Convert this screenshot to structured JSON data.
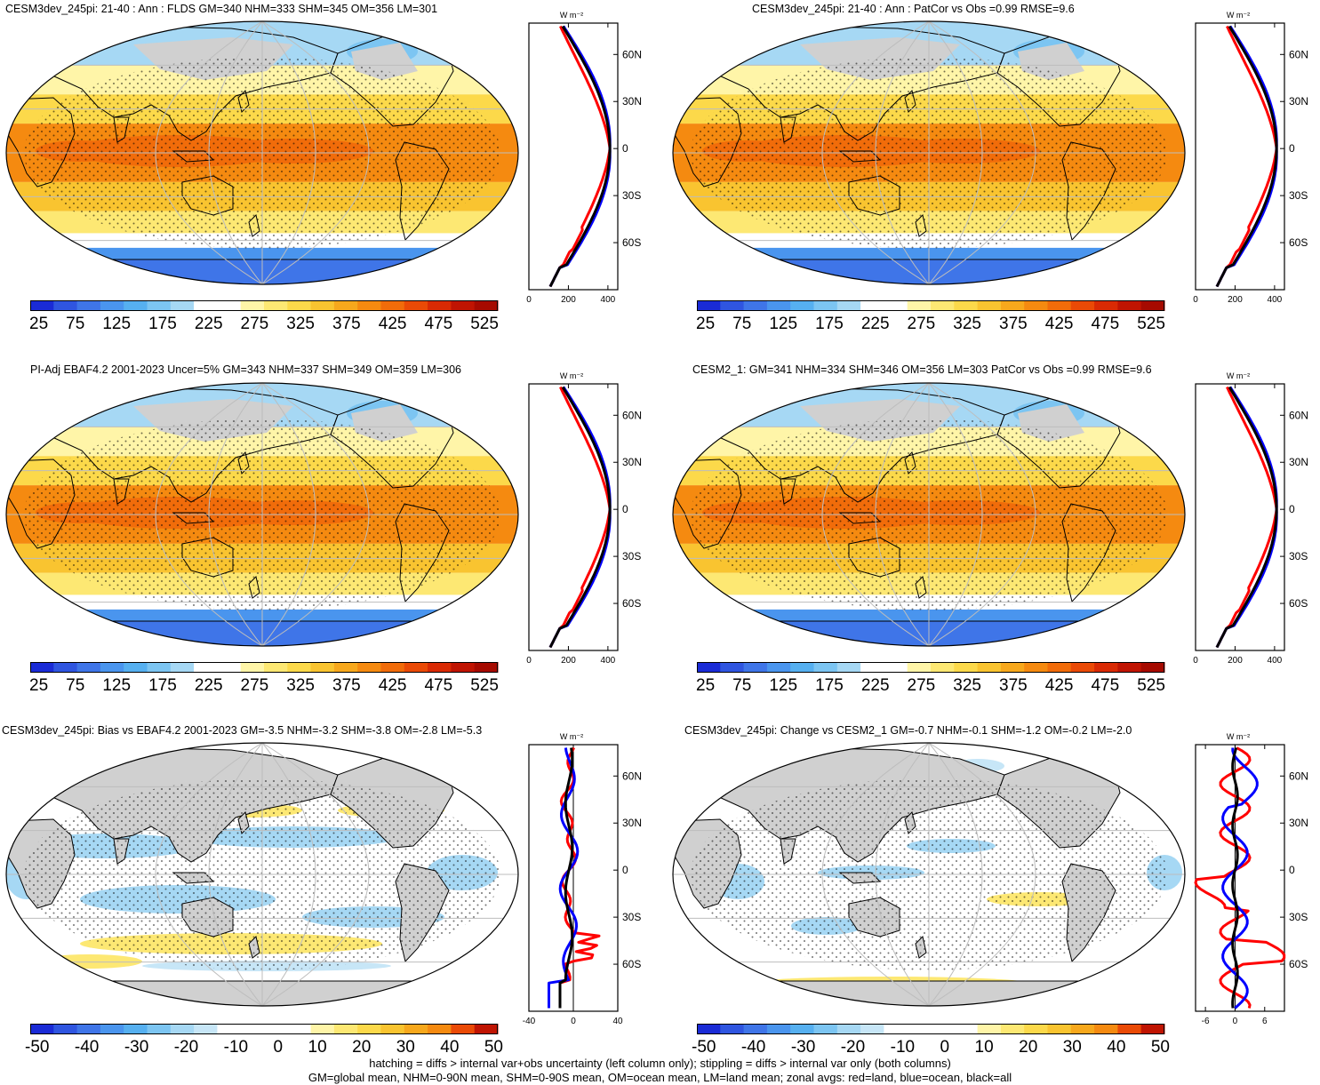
{
  "panels": [
    {
      "id": "p1",
      "title": "CESM3dev_245pi: 21-40 : Ann : FLDS GM=340 NHM=333 SHM=345 OM=356 LM=301",
      "kind": "abs",
      "cb_labels": [
        "25",
        "75",
        "125",
        "175",
        "225",
        "275",
        "325",
        "375",
        "425",
        "475",
        "525"
      ]
    },
    {
      "id": "p2",
      "title": "CESM3dev_245pi: 21-40 : Ann : PatCor vs Obs =0.99 RMSE=9.6",
      "kind": "abs",
      "cb_labels": [
        "25",
        "75",
        "125",
        "175",
        "225",
        "275",
        "325",
        "375",
        "425",
        "475",
        "525"
      ]
    },
    {
      "id": "p3",
      "title": "PI-Adj EBAF4.2 2001-2023 Uncer=5% GM=343 NHM=337 SHM=349 OM=359 LM=306",
      "kind": "abs",
      "cb_labels": [
        "25",
        "75",
        "125",
        "175",
        "225",
        "275",
        "325",
        "375",
        "425",
        "475",
        "525"
      ]
    },
    {
      "id": "p4",
      "title": "CESM2_1: GM=341 NHM=334 SHM=346 OM=356 LM=303 PatCor vs Obs =0.99 RMSE=9.6",
      "kind": "abs",
      "cb_labels": [
        "25",
        "75",
        "125",
        "175",
        "225",
        "275",
        "325",
        "375",
        "425",
        "475",
        "525"
      ]
    },
    {
      "id": "p5",
      "title": "CESM3dev_245pi: Bias vs EBAF4.2 2001-2023 GM=-3.5 NHM=-3.2 SHM=-3.8 OM=-2.8 LM=-5.3",
      "kind": "diff",
      "cb_labels": [
        "-50",
        "-40",
        "-30",
        "-20",
        "-10",
        "0",
        "10",
        "20",
        "30",
        "40",
        "50"
      ]
    },
    {
      "id": "p6",
      "title": "CESM3dev_245pi: Change vs CESM2_1 GM=-0.7 NHM=-0.1 SHM=-1.2 OM=-0.2 LM=-2.0",
      "kind": "diff",
      "cb_labels": [
        "-50",
        "-40",
        "-30",
        "-20",
        "-10",
        "0",
        "10",
        "20",
        "30",
        "40",
        "50"
      ]
    }
  ],
  "profiles": {
    "unit_label": "W m⁻²",
    "lat_labels": [
      "60N",
      "30N",
      "0",
      "30S",
      "60S"
    ],
    "lat_values": [
      60,
      30,
      0,
      -30,
      -60
    ],
    "abs_x_labels": [
      "0",
      "200",
      "400"
    ],
    "abs_x_values": [
      0,
      200,
      400
    ],
    "abs_xlim": [
      0,
      450
    ],
    "bias_x_labels": [
      "-40",
      "0",
      "40"
    ],
    "bias_x_values": [
      -40,
      0,
      40
    ],
    "bias_xlim": [
      -40,
      40
    ],
    "change_x_labels": [
      "-6",
      "0",
      "6"
    ],
    "change_x_values": [
      -6,
      0,
      6
    ],
    "change_xlim": [
      -8,
      10
    ]
  },
  "colors": {
    "land": "#d0d0d0",
    "abs_scale": [
      "#1a2bd6",
      "#2f55e0",
      "#3f75e8",
      "#4a95ee",
      "#56b0f0",
      "#7cc5f2",
      "#a6d8f4",
      "#ffffff",
      "#ffffff",
      "#fff5a8",
      "#fde873",
      "#fcd94a",
      "#f9c430",
      "#f7a81c",
      "#f58a10",
      "#f16c0a",
      "#ea4a06",
      "#d92a04",
      "#c01402",
      "#a60a00"
    ],
    "diff_scale": [
      "#1a2bd6",
      "#2f55e0",
      "#3f75e8",
      "#4a95ee",
      "#56b0f0",
      "#7cc5f2",
      "#a6d8f4",
      "#c7e6f7",
      "#ffffff",
      "#ffffff",
      "#ffffff",
      "#ffffff",
      "#fff5a8",
      "#fde873",
      "#fcd94a",
      "#f9c430",
      "#f7a81c",
      "#f58a10",
      "#ea4a06",
      "#c01402"
    ],
    "land_line": "#ff0000",
    "ocean_line": "#0000ff",
    "all_line": "#000000"
  },
  "footer": [
    "hatching = diffs > internal var+obs uncertainty (left column only); stippling = diffs > internal var only (both columns)",
    "GM=global mean, NHM=0-90N mean, SHM=0-90S mean, OM=ocean mean, LM=land mean; zonal avgs: red=land, blue=ocean, black=all"
  ]
}
